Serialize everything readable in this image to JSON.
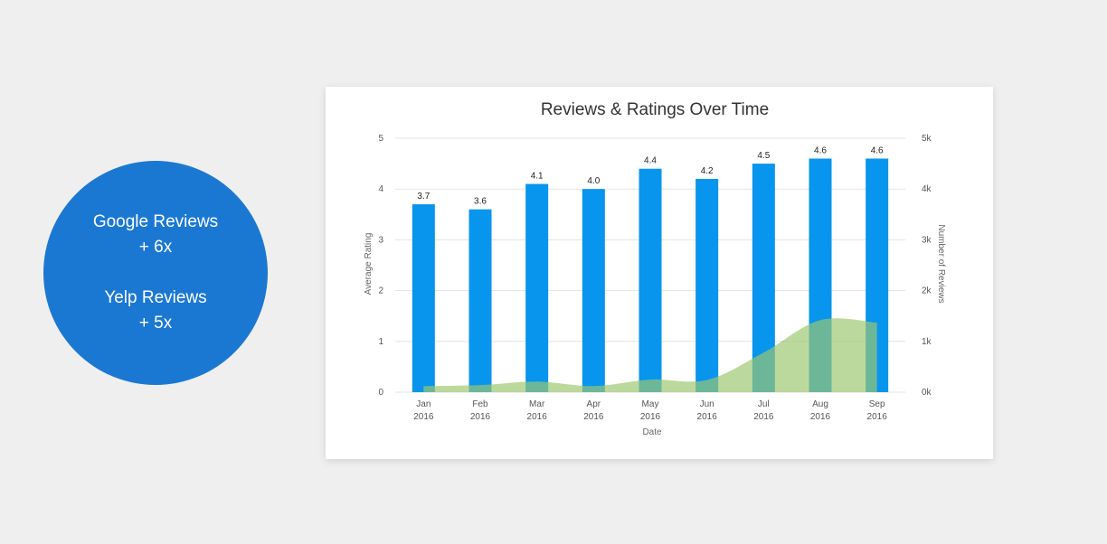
{
  "stats": {
    "google_label": "Google Reviews",
    "google_growth": "+ 6x",
    "yelp_label": "Yelp Reviews",
    "yelp_growth": "+ 5x"
  },
  "colors": {
    "bar": "#0795ee",
    "area": "#9cc76e",
    "circle": "#1b78d2"
  },
  "chart_data": {
    "type": "bar",
    "title": "Reviews & Ratings Over Time",
    "xlabel": "Date",
    "ylabel": "Average Rating",
    "y2label": "Number of Reviews",
    "categories": [
      [
        "Jan",
        "2016"
      ],
      [
        "Feb",
        "2016"
      ],
      [
        "Mar",
        "2016"
      ],
      [
        "Apr",
        "2016"
      ],
      [
        "May",
        "2016"
      ],
      [
        "Jun",
        "2016"
      ],
      [
        "Jul",
        "2016"
      ],
      [
        "Aug",
        "2016"
      ],
      [
        "Sep",
        "2016"
      ]
    ],
    "ylim": [
      0,
      5
    ],
    "yticks": [
      "0",
      "1",
      "2",
      "3",
      "4",
      "5"
    ],
    "y2lim": [
      0,
      5000
    ],
    "y2ticks": [
      "0k",
      "1k",
      "2k",
      "3k",
      "4k",
      "5k"
    ],
    "series": [
      {
        "type": "bar",
        "axis": "left",
        "values": [
          3.7,
          3.6,
          4.1,
          4.0,
          4.4,
          4.2,
          4.5,
          4.6,
          4.6
        ],
        "labels": [
          "3.7",
          "3.6",
          "4.1",
          "4.0",
          "4.4",
          "4.2",
          "4.5",
          "4.6",
          "4.6"
        ]
      },
      {
        "type": "area",
        "axis": "right",
        "values": [
          120,
          140,
          210,
          120,
          250,
          240,
          780,
          1420,
          1370
        ]
      }
    ],
    "grid": true
  }
}
